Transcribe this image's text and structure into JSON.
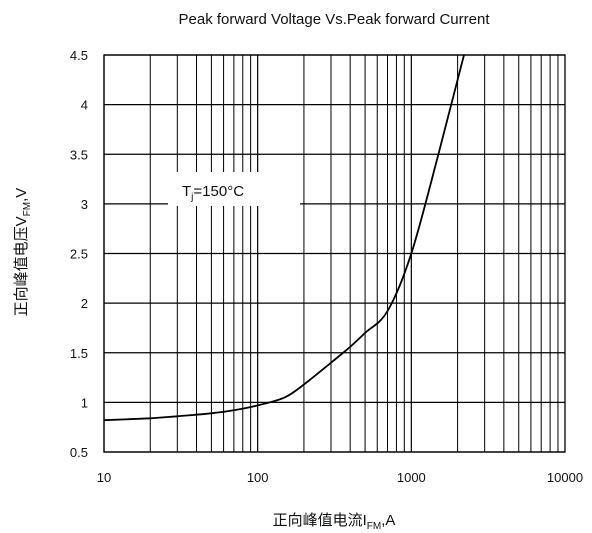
{
  "chart_data": {
    "type": "line",
    "title": "Peak forward Voltage Vs.Peak forward Current",
    "xlabel_main": "正向峰值电流I",
    "xlabel_sub": "FM",
    "xlabel_tail": ",A",
    "ylabel_main": "正向峰值电压V",
    "ylabel_sub": "FM",
    "ylabel_tail": ",V",
    "x_scale": "log",
    "xlim": [
      10,
      10000
    ],
    "ylim": [
      0.5,
      4.5
    ],
    "grid": true,
    "x_ticks": [
      10,
      100,
      1000,
      10000
    ],
    "x_tick_labels": [
      "10",
      "100",
      "1000",
      "10000"
    ],
    "y_ticks": [
      0.5,
      1,
      1.5,
      2,
      2.5,
      3,
      3.5,
      4,
      4.5
    ],
    "y_tick_labels": [
      "0.5",
      "1",
      "1.5",
      "2",
      "2.5",
      "3",
      "3.5",
      "4",
      "4.5"
    ],
    "annotation_main": "T",
    "annotation_sub": "j",
    "annotation_tail": "=150°C",
    "series": [
      {
        "x": [
          10,
          20,
          30,
          50,
          70,
          100,
          150,
          200,
          300,
          400,
          500,
          700,
          1000,
          1500,
          2000,
          2200
        ],
        "y": [
          0.82,
          0.84,
          0.86,
          0.89,
          0.92,
          0.97,
          1.05,
          1.18,
          1.4,
          1.56,
          1.7,
          1.92,
          2.5,
          3.5,
          4.25,
          4.5
        ]
      }
    ]
  }
}
